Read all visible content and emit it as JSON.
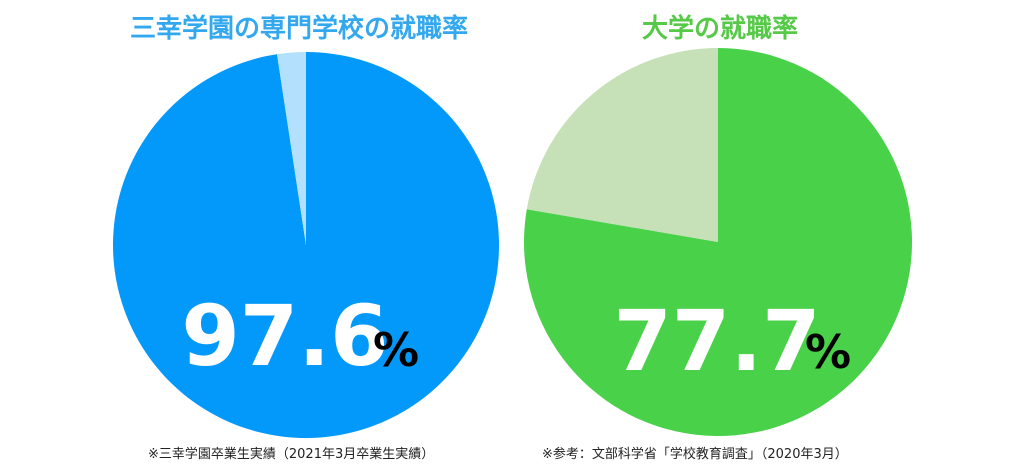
{
  "chart_data": [
    {
      "type": "pie",
      "title": "三幸学園の専門学校の就職率",
      "slices": [
        {
          "value": 97.6,
          "color": "#0399FB"
        },
        {
          "value": 2.4,
          "color": "#B3E1FD"
        }
      ],
      "label_value": "97.6",
      "label_unit": "%",
      "note": "※三幸学園卒業生実績（2021年3月卒業生実績）",
      "title_color": "#33A8EF"
    },
    {
      "type": "pie",
      "title": "大学の就職率",
      "slices": [
        {
          "value": 77.7,
          "color": "#4AD14A"
        },
        {
          "value": 22.3,
          "color": "#C6E0B7"
        }
      ],
      "label_value": "77.7",
      "label_unit": "%",
      "note": "※参考：文部科学省「学校教育調査」（2020年3月）",
      "title_color": "#56C948"
    }
  ]
}
